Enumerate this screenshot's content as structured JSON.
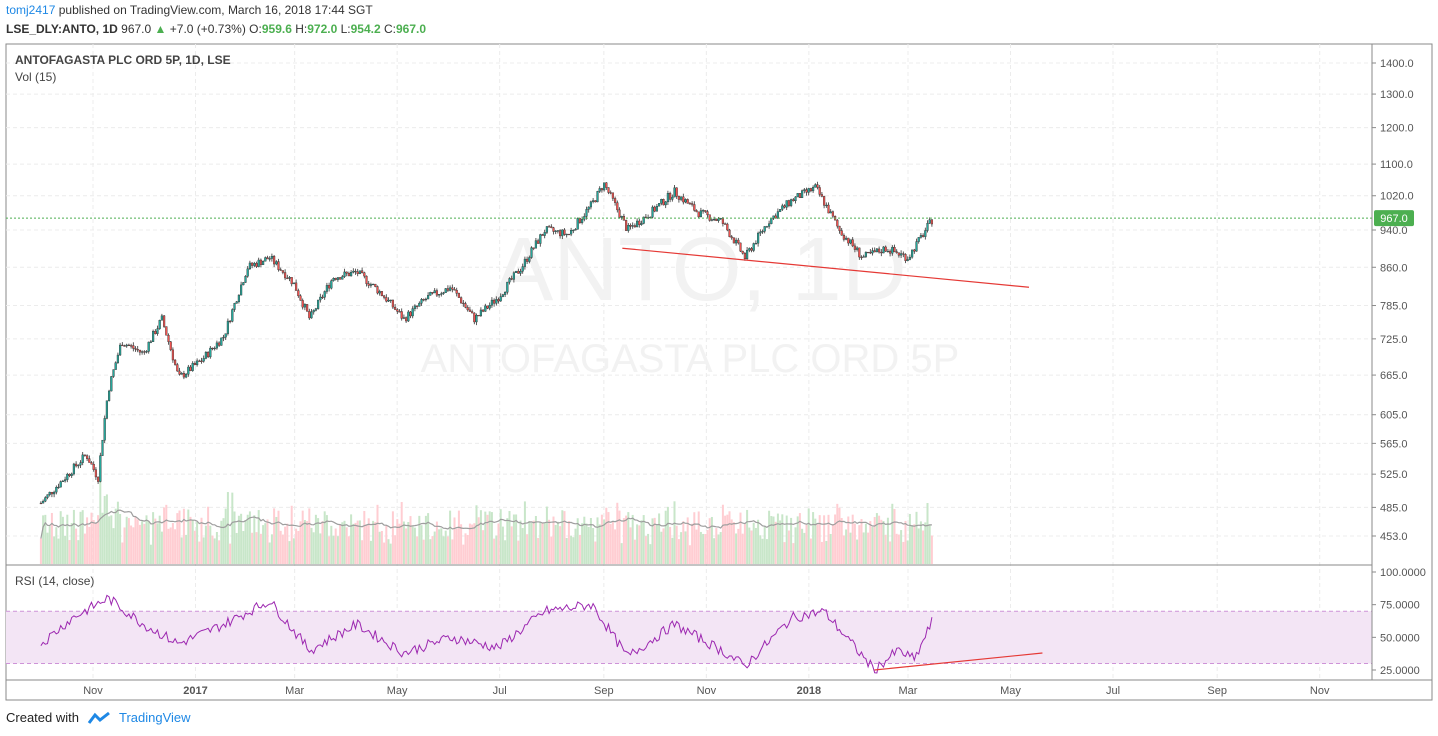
{
  "header": {
    "author": "tomj2417",
    "published_text": "published on TradingView.com, March 16, 2018 17:44 SGT",
    "symbol": "LSE_DLY:ANTO, 1D",
    "last": "967.0",
    "change": "+7.0 (+0.73%)",
    "ohlc": [
      {
        "label": "O:",
        "value": "959.6"
      },
      {
        "label": "H:",
        "value": "972.0"
      },
      {
        "label": "L:",
        "value": "954.2"
      },
      {
        "label": "C:",
        "value": "967.0"
      }
    ]
  },
  "pane_titles": {
    "main": "ANTOFAGASTA PLC ORD 5P, 1D, LSE",
    "volume": "Vol (15)",
    "rsi": "RSI (14, close)"
  },
  "watermark": {
    "line1": "ANTO, 1D",
    "line2": "ANTOFAGASTA PLC ORD 5P"
  },
  "footer": {
    "created_with": "Created with",
    "brand": "TradingView"
  },
  "colors": {
    "up": "#26a69a",
    "down": "#ef5350",
    "rsi_line": "#9c27b0",
    "rsi_band": "#f3e5f5",
    "trendline": "#e53935",
    "last_price": "#4caf50",
    "brand": "#1e88e5"
  },
  "chart_data": {
    "type": "candlestick",
    "price_axis": {
      "ticks": [
        "1400.0",
        "1300.0",
        "1200.0",
        "1100.0",
        "1020.0",
        "940.0",
        "860.0",
        "785.0",
        "725.0",
        "665.0",
        "605.0",
        "565.0",
        "525.0",
        "485.0",
        "453.0"
      ],
      "scale": "log",
      "last_price_label": "967.0"
    },
    "rsi_axis": {
      "ticks": [
        "100.0000",
        "75.0000",
        "50.0000",
        "25.0000"
      ],
      "band": [
        30,
        70
      ]
    },
    "time_axis": {
      "ticks": [
        "Nov",
        "2017",
        "Mar",
        "May",
        "Jul",
        "Sep",
        "Nov",
        "2018",
        "Mar",
        "May",
        "Jul",
        "Sep",
        "Nov"
      ]
    },
    "close_series": [
      [
        "2016-10-01",
        490
      ],
      [
        "2016-10-15",
        520
      ],
      [
        "2016-10-28",
        550
      ],
      [
        "2016-11-04",
        520
      ],
      [
        "2016-11-10",
        640
      ],
      [
        "2016-11-18",
        720
      ],
      [
        "2016-12-01",
        700
      ],
      [
        "2016-12-12",
        760
      ],
      [
        "2016-12-22",
        660
      ],
      [
        "2017-01-05",
        690
      ],
      [
        "2017-01-18",
        730
      ],
      [
        "2017-02-01",
        860
      ],
      [
        "2017-02-14",
        880
      ],
      [
        "2017-02-28",
        830
      ],
      [
        "2017-03-10",
        760
      ],
      [
        "2017-03-24",
        840
      ],
      [
        "2017-04-07",
        850
      ],
      [
        "2017-04-21",
        810
      ],
      [
        "2017-05-05",
        760
      ],
      [
        "2017-05-19",
        800
      ],
      [
        "2017-06-02",
        820
      ],
      [
        "2017-06-16",
        760
      ],
      [
        "2017-06-30",
        800
      ],
      [
        "2017-07-14",
        860
      ],
      [
        "2017-07-28",
        940
      ],
      [
        "2017-08-11",
        930
      ],
      [
        "2017-08-25",
        1000
      ],
      [
        "2017-09-01",
        1050
      ],
      [
        "2017-09-15",
        940
      ],
      [
        "2017-09-29",
        980
      ],
      [
        "2017-10-13",
        1030
      ],
      [
        "2017-10-27",
        980
      ],
      [
        "2017-11-10",
        960
      ],
      [
        "2017-11-24",
        880
      ],
      [
        "2017-12-08",
        960
      ],
      [
        "2017-12-22",
        1010
      ],
      [
        "2018-01-05",
        1040
      ],
      [
        "2018-01-19",
        940
      ],
      [
        "2018-02-02",
        880
      ],
      [
        "2018-02-16",
        900
      ],
      [
        "2018-03-01",
        880
      ],
      [
        "2018-03-09",
        925
      ],
      [
        "2018-03-16",
        967
      ]
    ],
    "rsi_series": [
      [
        "2016-10-01",
        45
      ],
      [
        "2016-10-20",
        65
      ],
      [
        "2016-11-10",
        80
      ],
      [
        "2016-12-01",
        60
      ],
      [
        "2016-12-22",
        45
      ],
      [
        "2017-01-18",
        60
      ],
      [
        "2017-02-14",
        78
      ],
      [
        "2017-03-10",
        40
      ],
      [
        "2017-04-07",
        60
      ],
      [
        "2017-05-05",
        38
      ],
      [
        "2017-06-02",
        50
      ],
      [
        "2017-06-30",
        42
      ],
      [
        "2017-07-28",
        70
      ],
      [
        "2017-08-25",
        75
      ],
      [
        "2017-09-15",
        35
      ],
      [
        "2017-10-13",
        60
      ],
      [
        "2017-11-10",
        40
      ],
      [
        "2017-11-24",
        28
      ],
      [
        "2017-12-22",
        65
      ],
      [
        "2018-01-10",
        70
      ],
      [
        "2018-02-09",
        25
      ],
      [
        "2018-02-23",
        40
      ],
      [
        "2018-03-05",
        33
      ],
      [
        "2018-03-16",
        64
      ]
    ],
    "trendlines": [
      {
        "pane": "price",
        "from": [
          "2017-09-12",
          900
        ],
        "to": [
          "2018-05-12",
          820
        ]
      },
      {
        "pane": "rsi",
        "from": [
          "2018-02-09",
          25
        ],
        "to": [
          "2018-05-20",
          38
        ]
      }
    ]
  }
}
